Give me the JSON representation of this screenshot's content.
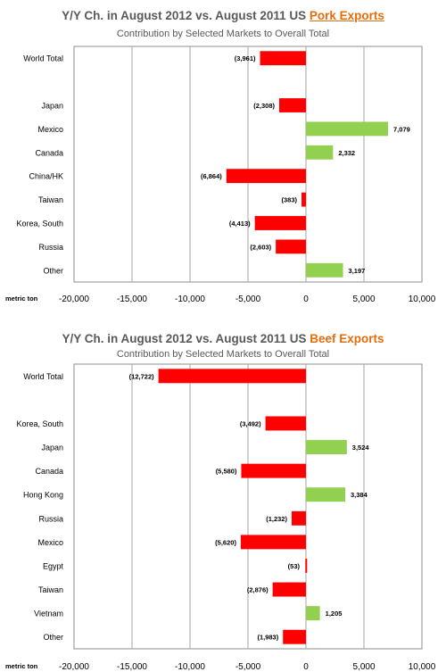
{
  "chart_data": [
    {
      "type": "bar",
      "orientation": "horizontal",
      "title_prefix": "Y/Y Ch. in August 2012 vs. August 2011 US ",
      "title_highlight": "Pork Exports",
      "subtitle": "Contribution by Selected Markets to Overall Total",
      "unit_label": "metric ton",
      "categories": [
        "World Total",
        "",
        "Japan",
        "Mexico",
        "Canada",
        "China/HK",
        "Taiwan",
        "Korea, South",
        "Russia",
        "Other"
      ],
      "values": [
        -3961,
        null,
        -2308,
        7079,
        2332,
        -6864,
        -383,
        -4413,
        -2603,
        3197
      ],
      "value_labels": [
        "(3,961)",
        "",
        "(2,308)",
        "7,079",
        "2,332",
        "(6,864)",
        "(383)",
        "(4,413)",
        "(2,603)",
        "3,197"
      ],
      "xlim": [
        -20000,
        10000
      ],
      "xticks": [
        -20000,
        -15000,
        -10000,
        -5000,
        0,
        5000,
        10000
      ],
      "xtick_labels": [
        "-20,000",
        "-15,000",
        "-10,000",
        "-5,000",
        "0",
        "5,000",
        "10,000"
      ],
      "grid": true,
      "colors": {
        "negative": "#ff0000",
        "positive": "#92d050"
      }
    },
    {
      "type": "bar",
      "orientation": "horizontal",
      "title_prefix": "Y/Y Ch. in August 2012 vs. August 2011 US ",
      "title_highlight": "Beef Exports",
      "subtitle": "Contribution by Selected Markets to Overall Total",
      "unit_label": "metric ton",
      "categories": [
        "World Total",
        "",
        "Korea, South",
        "Japan",
        "Canada",
        "Hong Kong",
        "Russia",
        "Mexico",
        "Egypt",
        "Taiwan",
        "Vietnam",
        "Other"
      ],
      "values": [
        -12722,
        null,
        -3492,
        3524,
        -5580,
        3384,
        -1232,
        -5620,
        -53,
        -2876,
        1205,
        -1983
      ],
      "value_labels": [
        "(12,722)",
        "",
        "(3,492)",
        "3,524",
        "(5,580)",
        "3,384",
        "(1,232)",
        "(5,620)",
        "(53)",
        "(2,876)",
        "1,205",
        "(1,983)"
      ],
      "xlim": [
        -20000,
        10000
      ],
      "xticks": [
        -20000,
        -15000,
        -10000,
        -5000,
        0,
        5000,
        10000
      ],
      "xtick_labels": [
        "-20,000",
        "-15,000",
        "-10,000",
        "-5,000",
        "0",
        "5,000",
        "10,000"
      ],
      "grid": true,
      "colors": {
        "negative": "#ff0000",
        "positive": "#92d050"
      }
    }
  ]
}
